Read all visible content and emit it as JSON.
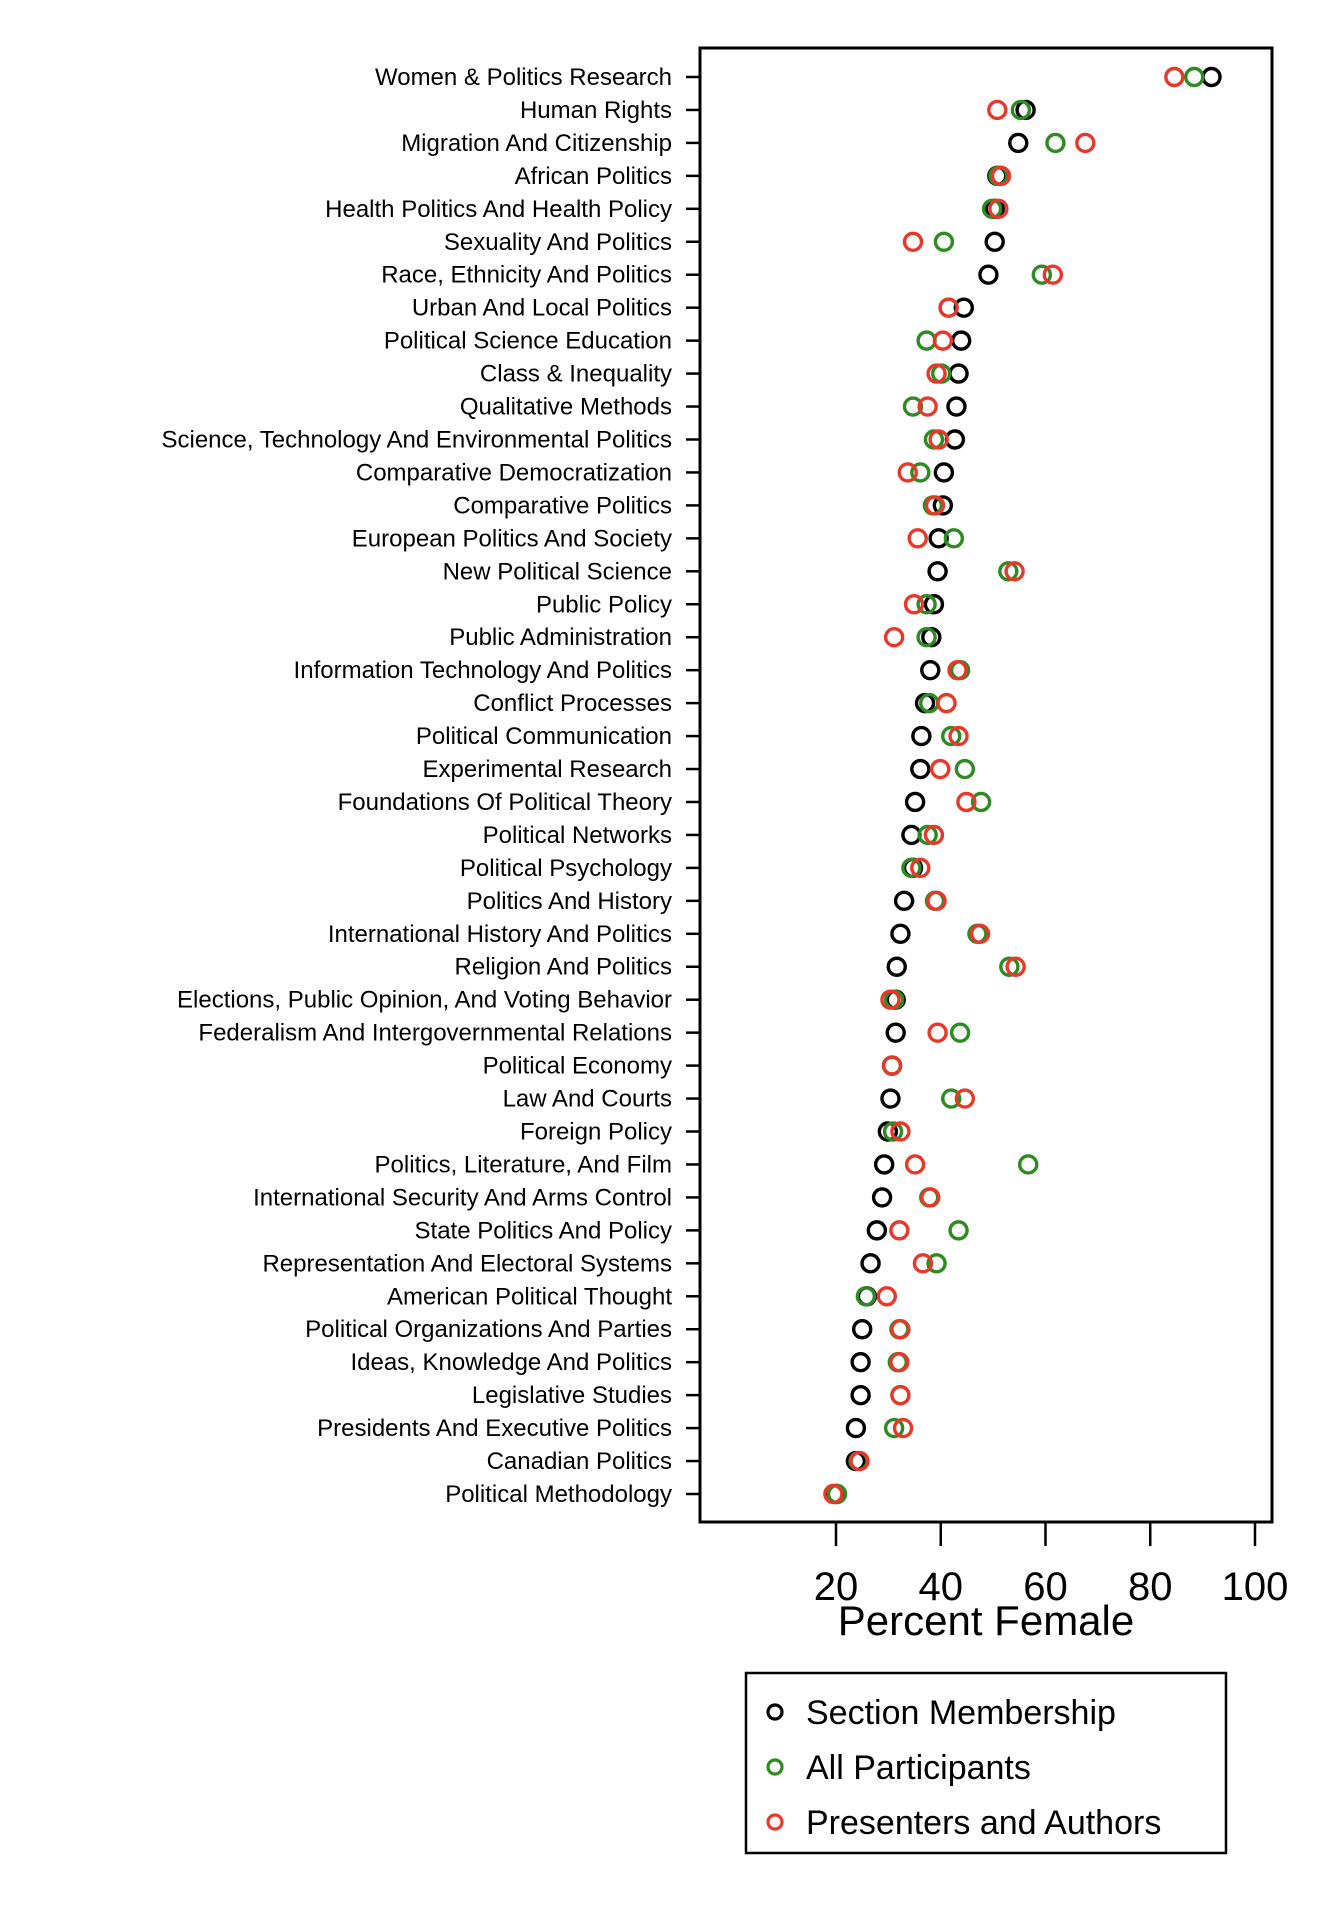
{
  "chart_data": {
    "type": "scatter",
    "subtype": "dot-plot",
    "title": "",
    "xlabel": "Percent Female",
    "ylabel": "",
    "xlim": [
      7,
      103
    ],
    "xticks": [
      20,
      40,
      60,
      80,
      100
    ],
    "grid": false,
    "legend_position": "bottom",
    "categories": [
      "Women & Politics Research",
      "Human Rights",
      "Migration And Citizenship",
      "African Politics",
      "Health Politics And Health Policy",
      "Sexuality And Politics",
      "Race, Ethnicity And Politics",
      "Urban And Local Politics",
      "Political Science Education",
      "Class & Inequality",
      "Qualitative Methods",
      "Science, Technology And Environmental Politics",
      "Comparative Democratization",
      "Comparative Politics",
      "European Politics And Society",
      "New Political Science",
      "Public Policy",
      "Public Administration",
      "Information Technology And Politics",
      "Conflict Processes",
      "Political Communication",
      "Experimental Research",
      "Foundations Of Political Theory",
      "Political Networks",
      "Political Psychology",
      "Politics And History",
      "International History And Politics",
      "Religion And Politics",
      "Elections, Public Opinion, And Voting Behavior",
      "Federalism And Intergovernmental Relations",
      "Political Economy",
      "Law And Courts",
      "Foreign Policy",
      "Politics, Literature, And Film",
      "International Security And Arms Control",
      "State Politics And Policy",
      "Representation And Electoral Systems",
      "American Political Thought",
      "Political Organizations And Parties",
      "Ideas, Knowledge And Politics",
      "Legislative Studies",
      "Presidents And Executive Politics",
      "Canadian Politics",
      "Political Methodology"
    ],
    "series": [
      {
        "name": "Section Membership",
        "color": "#000000",
        "values": [
          91.7,
          56.2,
          54.8,
          50.8,
          50.3,
          50.3,
          49.1,
          44.4,
          43.9,
          43.4,
          43.0,
          42.7,
          40.6,
          40.4,
          39.6,
          39.4,
          38.7,
          38.2,
          38.0,
          37.0,
          36.3,
          36.1,
          35.1,
          34.4,
          34.7,
          33.0,
          32.3,
          31.6,
          31.4,
          31.4,
          30.7,
          30.4,
          29.9,
          29.2,
          28.8,
          27.8,
          26.6,
          25.9,
          25.0,
          24.7,
          24.7,
          23.8,
          23.8,
          20.0
        ]
      },
      {
        "name": "All Participants",
        "color": "#2e8b22",
        "values": [
          88.4,
          55.3,
          61.9,
          51.0,
          49.8,
          40.6,
          59.3,
          41.5,
          37.3,
          40.1,
          34.7,
          38.7,
          36.1,
          38.5,
          42.5,
          52.9,
          37.3,
          37.3,
          43.7,
          37.8,
          42.0,
          44.6,
          47.7,
          37.5,
          34.4,
          38.9,
          47.0,
          53.1,
          31.1,
          43.7,
          30.7,
          42.0,
          30.9,
          56.7,
          37.8,
          43.4,
          39.2,
          25.7,
          32.1,
          31.8,
          32.3,
          31.1,
          24.3,
          20.2
        ]
      },
      {
        "name": "Presenters and Authors",
        "color": "#e8382a",
        "values": [
          84.6,
          50.8,
          67.6,
          51.5,
          51.0,
          34.7,
          61.4,
          41.5,
          40.4,
          39.2,
          37.5,
          39.6,
          33.7,
          38.9,
          35.6,
          54.1,
          34.9,
          31.1,
          43.2,
          41.1,
          43.4,
          39.9,
          44.9,
          38.7,
          36.1,
          39.2,
          47.5,
          54.3,
          30.4,
          39.4,
          30.7,
          44.6,
          32.3,
          35.1,
          38.0,
          32.1,
          36.6,
          29.7,
          32.3,
          32.1,
          32.3,
          32.8,
          24.5,
          19.5
        ]
      }
    ]
  },
  "legend": {
    "items": [
      {
        "label": "Section Membership",
        "color": "#000000"
      },
      {
        "label": "All Participants",
        "color": "#2e8b22"
      },
      {
        "label": "Presenters and Authors",
        "color": "#e8382a"
      }
    ]
  }
}
